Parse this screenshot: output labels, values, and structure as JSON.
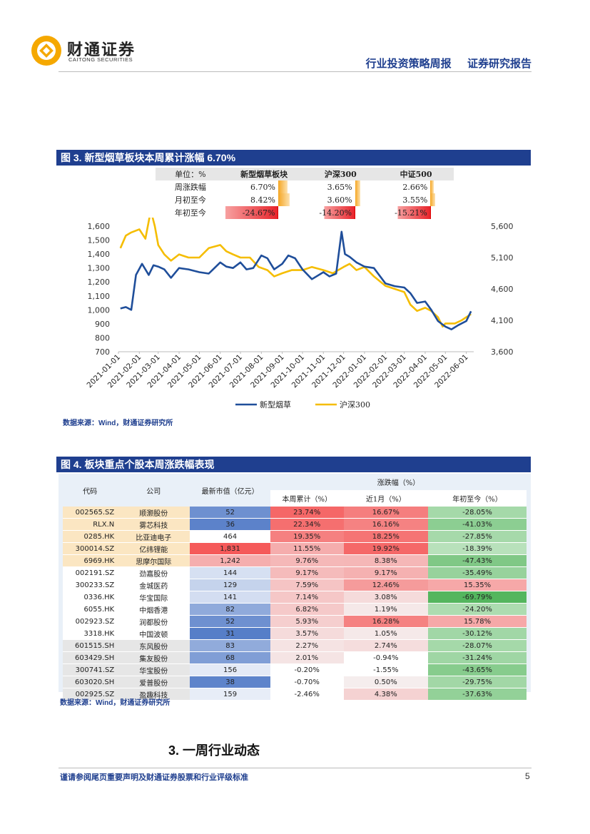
{
  "header": {
    "brand_cn": "财通证券",
    "brand_en": "CAITONG SECURITIES",
    "report_type": "行业投资策略周报",
    "report_category": "证券研究报告",
    "brand_color": "#f5a800",
    "accent_color": "#1f3f8f"
  },
  "figure3": {
    "title": "图 3. 新型烟草板块本周累计涨幅 6.70%",
    "summary_table": {
      "headers": [
        "单位：%",
        "新型烟草板块",
        "沪深300",
        "中证500"
      ],
      "rows": [
        {
          "label": "周涨跌幅",
          "values": [
            "6.70%",
            "3.65%",
            "2.66%"
          ],
          "nums": [
            6.7,
            3.65,
            2.66
          ]
        },
        {
          "label": "月初至今",
          "values": [
            "8.42%",
            "3.60%",
            "3.55%"
          ],
          "nums": [
            8.42,
            3.6,
            3.55
          ]
        },
        {
          "label": "年初至今",
          "values": [
            "-24.67%",
            "-14.20%",
            "-15.21%"
          ],
          "nums": [
            -24.67,
            -14.2,
            -15.21
          ]
        }
      ]
    },
    "source": "数据来源：Wind，财通证券研究所"
  },
  "chart_data": {
    "type": "line",
    "title": "",
    "x_ticks": [
      "2021-01-01",
      "2021-02-01",
      "2021-03-01",
      "2021-04-01",
      "2021-05-01",
      "2021-06-01",
      "2021-07-01",
      "2021-08-01",
      "2021-09-01",
      "2021-10-01",
      "2021-11-01",
      "2021-12-01",
      "2022-01-01",
      "2022-02-01",
      "2022-03-01",
      "2022-04-01",
      "2022-05-01",
      "2022-06-01"
    ],
    "y_left_ticks": [
      "1,600",
      "1,500",
      "1,400",
      "1,300",
      "1,200",
      "1,100",
      "1,000",
      "900",
      "800",
      "700"
    ],
    "y_left_range": [
      700,
      1600
    ],
    "y_right_ticks": [
      "5,600",
      "5,100",
      "4,600",
      "4,100",
      "3,600"
    ],
    "y_right_range": [
      3600,
      5600
    ],
    "legend_position": "bottom",
    "series": [
      {
        "name": "新型烟草",
        "axis": "left",
        "color": "#1f4e9a",
        "x": [
          "2021-01-04",
          "2021-01-12",
          "2021-01-20",
          "2021-01-27",
          "2021-02-05",
          "2021-02-15",
          "2021-02-22",
          "2021-03-01",
          "2021-03-10",
          "2021-03-20",
          "2021-04-01",
          "2021-04-15",
          "2021-05-01",
          "2021-05-15",
          "2021-06-01",
          "2021-06-10",
          "2021-06-20",
          "2021-07-01",
          "2021-07-10",
          "2021-07-20",
          "2021-08-01",
          "2021-08-10",
          "2021-08-20",
          "2021-09-01",
          "2021-09-10",
          "2021-09-20",
          "2021-10-01",
          "2021-10-15",
          "2021-11-01",
          "2021-11-10",
          "2021-11-20",
          "2021-11-28",
          "2021-12-03",
          "2021-12-10",
          "2021-12-20",
          "2022-01-01",
          "2022-01-15",
          "2022-02-01",
          "2022-02-15",
          "2022-03-01",
          "2022-03-10",
          "2022-03-20",
          "2022-04-01",
          "2022-04-10",
          "2022-04-20",
          "2022-05-01",
          "2022-05-10",
          "2022-05-20",
          "2022-06-01",
          "2022-06-08"
        ],
        "values": [
          1010,
          1020,
          1000,
          1250,
          1330,
          1250,
          1320,
          1310,
          1290,
          1230,
          1300,
          1290,
          1270,
          1260,
          1340,
          1310,
          1300,
          1340,
          1290,
          1300,
          1390,
          1370,
          1290,
          1330,
          1390,
          1370,
          1290,
          1220,
          1270,
          1240,
          1260,
          1560,
          1400,
          1380,
          1340,
          1310,
          1300,
          1190,
          1170,
          1160,
          1120,
          1050,
          1060,
          1000,
          920,
          880,
          860,
          890,
          920,
          990
        ]
      },
      {
        "name": "沪深300",
        "axis": "right",
        "color": "#f5bd00",
        "x": [
          "2021-01-04",
          "2021-01-12",
          "2021-01-20",
          "2021-02-01",
          "2021-02-10",
          "2021-02-18",
          "2021-02-24",
          "2021-03-01",
          "2021-03-10",
          "2021-03-20",
          "2021-04-01",
          "2021-04-15",
          "2021-05-01",
          "2021-05-15",
          "2021-06-01",
          "2021-06-10",
          "2021-06-20",
          "2021-07-01",
          "2021-07-15",
          "2021-07-28",
          "2021-08-10",
          "2021-08-20",
          "2021-09-01",
          "2021-09-15",
          "2021-10-01",
          "2021-10-15",
          "2021-11-01",
          "2021-11-15",
          "2021-12-01",
          "2021-12-10",
          "2021-12-20",
          "2022-01-01",
          "2022-01-15",
          "2022-02-01",
          "2022-02-15",
          "2022-03-01",
          "2022-03-10",
          "2022-03-20",
          "2022-04-01",
          "2022-04-10",
          "2022-04-20",
          "2022-04-27",
          "2022-05-01",
          "2022-05-15",
          "2022-05-25",
          "2022-06-01",
          "2022-06-08"
        ],
        "values": [
          5250,
          5450,
          5500,
          5550,
          5400,
          5850,
          5600,
          5300,
          5150,
          5050,
          5150,
          5100,
          5100,
          5250,
          5300,
          5200,
          5150,
          5100,
          5100,
          4950,
          4900,
          4800,
          4850,
          4900,
          4900,
          4950,
          4900,
          4850,
          4950,
          5000,
          4900,
          4950,
          4800,
          4650,
          4600,
          4550,
          4350,
          4250,
          4300,
          4250,
          4150,
          4000,
          4050,
          4050,
          4100,
          4150,
          4200
        ]
      }
    ]
  },
  "figure4": {
    "title": "图 4. 板块重点个股本周涨跌幅表现",
    "headers": {
      "code": "代码",
      "company": "公司",
      "mktcap": "最新市值（亿元）",
      "change_group": "涨跌幅（%）",
      "week": "本周累计（%）",
      "month": "近1月（%）",
      "ytd": "年初至今（%）"
    },
    "rows": [
      {
        "code": "002565.SZ",
        "company": "顺灏股份",
        "mktcap": "52",
        "week": "23.74%",
        "month": "16.67%",
        "ytd": "-28.05%",
        "mc": 52,
        "w": 23.74,
        "m": 16.67,
        "y": -28.05
      },
      {
        "code": "RLX.N",
        "company": "雾芯科技",
        "mktcap": "36",
        "week": "22.34%",
        "month": "16.16%",
        "ytd": "-41.03%",
        "mc": 36,
        "w": 22.34,
        "m": 16.16,
        "y": -41.03
      },
      {
        "code": "0285.HK",
        "company": "比亚迪电子",
        "mktcap": "464",
        "week": "19.35%",
        "month": "18.25%",
        "ytd": "-27.85%",
        "mc": 464,
        "w": 19.35,
        "m": 18.25,
        "y": -27.85
      },
      {
        "code": "300014.SZ",
        "company": "亿纬锂能",
        "mktcap": "1,831",
        "week": "11.55%",
        "month": "19.92%",
        "ytd": "-18.39%",
        "mc": 1831,
        "w": 11.55,
        "m": 19.92,
        "y": -18.39
      },
      {
        "code": "6969.HK",
        "company": "思摩尔国际",
        "mktcap": "1,242",
        "week": "9.76%",
        "month": "8.38%",
        "ytd": "-47.43%",
        "mc": 1242,
        "w": 9.76,
        "m": 8.38,
        "y": -47.43
      },
      {
        "code": "002191.SZ",
        "company": "劲嘉股份",
        "mktcap": "144",
        "week": "9.17%",
        "month": "9.17%",
        "ytd": "-35.49%",
        "mc": 144,
        "w": 9.17,
        "m": 9.17,
        "y": -35.49
      },
      {
        "code": "300233.SZ",
        "company": "金城医药",
        "mktcap": "129",
        "week": "7.59%",
        "month": "12.46%",
        "ytd": "15.35%",
        "mc": 129,
        "w": 7.59,
        "m": 12.46,
        "y": 15.35
      },
      {
        "code": "0336.HK",
        "company": "华宝国际",
        "mktcap": "141",
        "week": "7.14%",
        "month": "3.08%",
        "ytd": "-69.79%",
        "mc": 141,
        "w": 7.14,
        "m": 3.08,
        "y": -69.79
      },
      {
        "code": "6055.HK",
        "company": "中烟香港",
        "mktcap": "82",
        "week": "6.82%",
        "month": "1.19%",
        "ytd": "-24.20%",
        "mc": 82,
        "w": 6.82,
        "m": 1.19,
        "y": -24.2
      },
      {
        "code": "002923.SZ",
        "company": "润都股份",
        "mktcap": "52",
        "week": "5.93%",
        "month": "16.28%",
        "ytd": "15.78%",
        "mc": 52,
        "w": 5.93,
        "m": 16.28,
        "y": 15.78
      },
      {
        "code": "3318.HK",
        "company": "中国波顿",
        "mktcap": "31",
        "week": "3.57%",
        "month": "1.05%",
        "ytd": "-30.12%",
        "mc": 31,
        "w": 3.57,
        "m": 1.05,
        "y": -30.12
      },
      {
        "code": "601515.SH",
        "company": "东风股份",
        "mktcap": "83",
        "week": "2.27%",
        "month": "2.74%",
        "ytd": "-28.07%",
        "mc": 83,
        "w": 2.27,
        "m": 2.74,
        "y": -28.07
      },
      {
        "code": "603429.SH",
        "company": "集友股份",
        "mktcap": "68",
        "week": "2.01%",
        "month": "-0.94%",
        "ytd": "-31.24%",
        "mc": 68,
        "w": 2.01,
        "m": -0.94,
        "y": -31.24
      },
      {
        "code": "300741.SZ",
        "company": "华宝股份",
        "mktcap": "156",
        "week": "-0.20%",
        "month": "-1.55%",
        "ytd": "-43.65%",
        "mc": 156,
        "w": -0.2,
        "m": -1.55,
        "y": -43.65
      },
      {
        "code": "603020.SH",
        "company": "爱普股份",
        "mktcap": "38",
        "week": "-0.70%",
        "month": "0.50%",
        "ytd": "-29.75%",
        "mc": 38,
        "w": -0.7,
        "m": 0.5,
        "y": -29.75
      },
      {
        "code": "002925.SZ",
        "company": "盈趣科技",
        "mktcap": "159",
        "week": "-2.46%",
        "month": "4.38%",
        "ytd": "-37.63%",
        "mc": 159,
        "w": -2.46,
        "m": 4.38,
        "y": -37.63
      }
    ],
    "source": "数据来源：Wind，财通证券研究所"
  },
  "section": {
    "heading": "3. 一周行业动态"
  },
  "footer": {
    "disclaimer": "谨请参阅尾页重要声明及财通证券股票和行业评级标准",
    "page_number": "5"
  }
}
